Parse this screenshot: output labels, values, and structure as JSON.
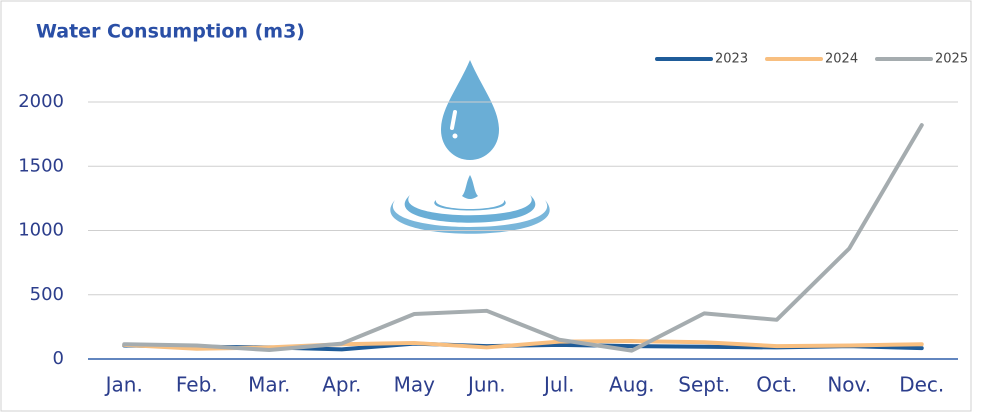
{
  "chart_data": {
    "type": "line",
    "title": "Water Consumption (m3)",
    "categories": [
      "Jan.",
      "Feb.",
      "Mar.",
      "Apr.",
      "May",
      "Jun.",
      "Jul.",
      "Aug.",
      "Sept.",
      "Oct.",
      "Nov.",
      "Dec."
    ],
    "series": [
      {
        "name": "2023",
        "color": "#1f5c99",
        "values": [
          105,
          95,
          90,
          75,
          120,
          100,
          110,
          100,
          95,
          90,
          100,
          85
        ]
      },
      {
        "name": "2024",
        "color": "#f8bf80",
        "values": [
          110,
          80,
          90,
          115,
          125,
          90,
          135,
          140,
          130,
          100,
          105,
          115
        ]
      },
      {
        "name": "2025",
        "color": "#a5acaf",
        "values": [
          115,
          105,
          70,
          120,
          350,
          375,
          150,
          65,
          355,
          305,
          860,
          1820
        ]
      }
    ],
    "ylim": [
      0,
      2000
    ],
    "yticks": [
      0,
      500,
      1000,
      1500,
      2000
    ],
    "grid": true,
    "legend": "top-right"
  }
}
